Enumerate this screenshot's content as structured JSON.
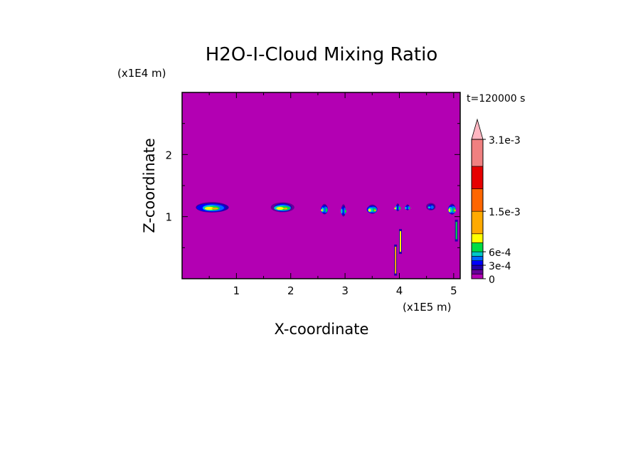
{
  "chart_data": {
    "type": "heatmap",
    "title": "H2O-I-Cloud Mixing Ratio",
    "xlabel": "X-coordinate",
    "ylabel": "Z-coordinate",
    "x_unit": "(x1E5 m)",
    "y_unit": "(x1E4 m)",
    "time_label": "t=120000 s",
    "xlim": [
      0,
      5.12
    ],
    "ylim": [
      0,
      3
    ],
    "x_ticks": [
      1,
      2,
      3,
      4,
      5
    ],
    "y_ticks": [
      1,
      2
    ],
    "colorbar": {
      "levels": [
        0,
        0.0001,
        0.0002,
        0.0003,
        0.0004,
        0.0005,
        0.0006,
        0.0008,
        0.001,
        0.0015,
        0.002,
        0.0025,
        0.0031
      ],
      "colors": [
        "#b300b3",
        "#660099",
        "#2200aa",
        "#0000ff",
        "#0066ff",
        "#00c8c8",
        "#00dd44",
        "#ffff00",
        "#ffaa00",
        "#ff6600",
        "#e60000",
        "#f08080",
        "#ffb6c1"
      ],
      "tick_labels": [
        "0",
        "3e-4",
        "6e-4",
        "1.5e-3",
        "3.1e-3"
      ],
      "tick_values": [
        0,
        0.0003,
        0.0006,
        0.0015,
        0.0031
      ],
      "extend": "max"
    },
    "background_value": 0,
    "cloud_cells": [
      {
        "x": 0.55,
        "z": 1.15,
        "wx": 0.7,
        "wz": 0.17,
        "peak": 0.0011
      },
      {
        "x": 1.85,
        "z": 1.15,
        "wx": 0.5,
        "wz": 0.16,
        "peak": 0.0011
      },
      {
        "x": 2.62,
        "z": 1.12,
        "wx": 0.14,
        "wz": 0.17,
        "peak": 0.0009
      },
      {
        "x": 2.97,
        "z": 1.1,
        "wx": 0.09,
        "wz": 0.2,
        "peak": 0.0007
      },
      {
        "x": 3.5,
        "z": 1.12,
        "wx": 0.22,
        "wz": 0.15,
        "peak": 0.001
      },
      {
        "x": 3.97,
        "z": 1.15,
        "wx": 0.06,
        "wz": 0.13,
        "peak": 0.0008
      },
      {
        "x": 4.15,
        "z": 1.15,
        "wx": 0.08,
        "wz": 0.1,
        "peak": 0.0006
      },
      {
        "x": 4.58,
        "z": 1.16,
        "wx": 0.18,
        "wz": 0.12,
        "peak": 0.0005
      },
      {
        "x": 4.97,
        "z": 1.12,
        "wx": 0.16,
        "wz": 0.18,
        "peak": 0.0011
      }
    ],
    "streaks": [
      {
        "x": 3.93,
        "z0": 0.05,
        "z1": 0.55,
        "peak": 0.0012
      },
      {
        "x": 4.02,
        "z0": 0.4,
        "z1": 0.8,
        "peak": 0.0009
      },
      {
        "x": 5.05,
        "z0": 0.6,
        "z1": 0.95,
        "peak": 0.0007
      }
    ]
  }
}
